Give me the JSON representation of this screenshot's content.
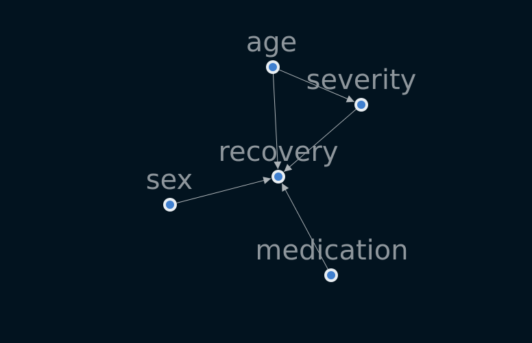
{
  "diagram": {
    "colors": {
      "background": "#02131f",
      "edge": "#aeb4b8",
      "node_ring": "#e9eef2",
      "node_core": "#3f7fcf",
      "label": "#8e969c"
    },
    "nodes": [
      {
        "id": "age",
        "label": "age"
      },
      {
        "id": "severity",
        "label": "severity"
      },
      {
        "id": "recovery",
        "label": "recovery"
      },
      {
        "id": "sex",
        "label": "sex"
      },
      {
        "id": "medication",
        "label": "medication"
      }
    ],
    "edges": [
      {
        "from": "age",
        "to": "severity"
      },
      {
        "from": "age",
        "to": "recovery"
      },
      {
        "from": "severity",
        "to": "recovery"
      },
      {
        "from": "sex",
        "to": "recovery"
      },
      {
        "from": "medication",
        "to": "recovery"
      }
    ]
  }
}
